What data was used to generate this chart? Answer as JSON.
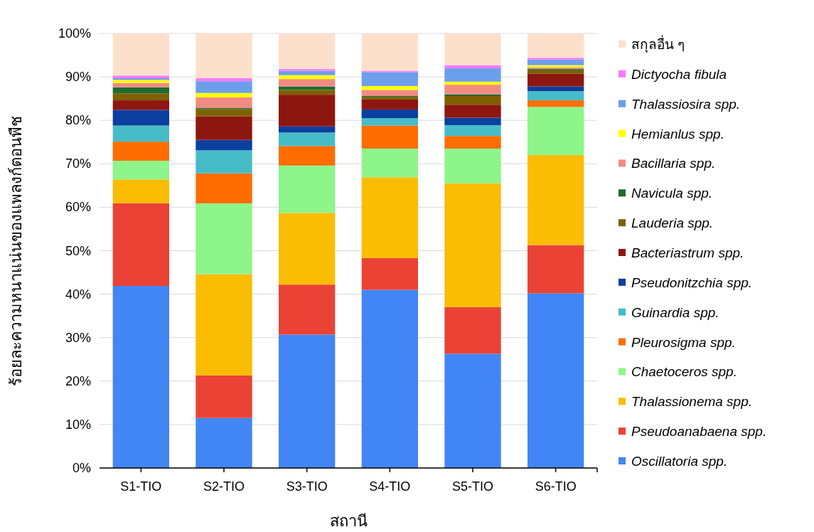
{
  "chart_data": {
    "type": "bar",
    "stacked": true,
    "xlabel": "สถานี",
    "ylabel": "ร้อยละความหนาแน่นของแพลงก์ตอนพืช",
    "categories": [
      "S1-TIO",
      "S2-TIO",
      "S3-TIO",
      "S4-TIO",
      "S5-TIO",
      "S6-TIO"
    ],
    "ylim": [
      0,
      100
    ],
    "yticks": [
      {
        "value": 0,
        "label": "0%"
      },
      {
        "value": 10,
        "label": "10%"
      },
      {
        "value": 20,
        "label": "20%"
      },
      {
        "value": 30,
        "label": "30%"
      },
      {
        "value": 40,
        "label": "40%"
      },
      {
        "value": 50,
        "label": "50%"
      },
      {
        "value": 60,
        "label": "60%"
      },
      {
        "value": 70,
        "label": "70%"
      },
      {
        "value": 80,
        "label": "80%"
      },
      {
        "value": 90,
        "label": "90%"
      },
      {
        "value": 100,
        "label": "100%"
      }
    ],
    "grid": "y",
    "legend": "right",
    "series": [
      {
        "name": "Oscillatoria spp.",
        "color": "#4285f4",
        "values": [
          41.9,
          11.5,
          30.7,
          41.0,
          26.3,
          40.2
        ]
      },
      {
        "name": "Pseudoanabaena spp.",
        "color": "#ea4335",
        "values": [
          19.0,
          9.8,
          11.5,
          7.3,
          10.7,
          11.1
        ]
      },
      {
        "name": "Thalassionema spp.",
        "color": "#fbbc04",
        "values": [
          5.5,
          23.3,
          16.5,
          18.6,
          28.5,
          20.7
        ]
      },
      {
        "name": "Chaetoceros spp.",
        "color": "#8ef58a",
        "values": [
          4.3,
          16.3,
          10.9,
          6.6,
          8.0,
          11.1
        ]
      },
      {
        "name": "Pleurosigma spp.",
        "color": "#ff6d01",
        "values": [
          4.4,
          6.9,
          4.5,
          5.3,
          2.9,
          1.5
        ]
      },
      {
        "name": "Guinardia spp.",
        "color": "#46bdc6",
        "values": [
          3.7,
          5.3,
          3.1,
          1.7,
          2.5,
          2.1
        ]
      },
      {
        "name": "Pseudonitzchia spp.",
        "color": "#0b3fa0",
        "values": [
          3.6,
          2.4,
          1.4,
          2.0,
          1.7,
          1.1
        ]
      },
      {
        "name": "Bacteriastrum spp.",
        "color": "#8e1610",
        "values": [
          2.2,
          5.4,
          7.3,
          2.3,
          3.0,
          2.9
        ]
      },
      {
        "name": "Lauderia spp.",
        "color": "#7f6000",
        "values": [
          1.6,
          1.7,
          1.1,
          0.6,
          2.0,
          0.8
        ]
      },
      {
        "name": "Navicula spp.",
        "color": "#1e6b2e",
        "values": [
          1.4,
          0.3,
          0.8,
          0.2,
          0.4,
          0.3
        ]
      },
      {
        "name": "Bacillaria spp.",
        "color": "#f28b82",
        "values": [
          1.0,
          2.4,
          1.7,
          1.4,
          2.2,
          0.4
        ]
      },
      {
        "name": "Hemianlus spp.",
        "color": "#ffff00",
        "values": [
          0.7,
          1.0,
          0.9,
          0.9,
          0.7,
          0.5
        ]
      },
      {
        "name": "Thalassiosira spp.",
        "color": "#6d9eeb",
        "values": [
          0.4,
          2.7,
          1.0,
          3.2,
          3.1,
          1.3
        ]
      },
      {
        "name": "Dictyocha fibula",
        "color": "#ff77ff",
        "values": [
          0.6,
          0.7,
          0.4,
          0.3,
          0.7,
          0.4
        ]
      },
      {
        "name": "สกุลอื่น ๆ",
        "color": "#fde0cc",
        "values": [
          9.7,
          10.3,
          8.2,
          8.6,
          7.3,
          5.6
        ]
      }
    ]
  }
}
